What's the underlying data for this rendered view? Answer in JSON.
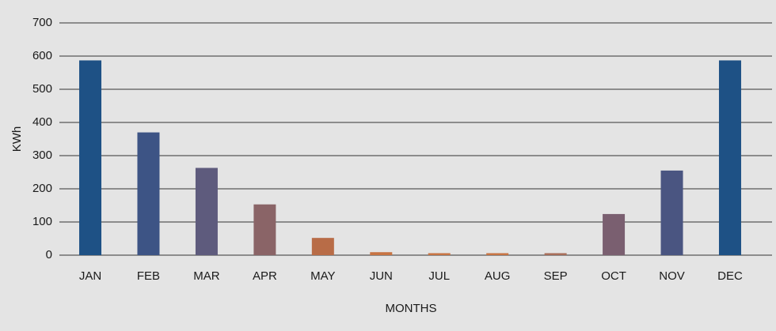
{
  "chart_data": {
    "type": "bar",
    "x_label": "MONTHS",
    "y_label": "KWh",
    "categories": [
      "JAN",
      "FEB",
      "MAR",
      "APR",
      "MAY",
      "JUN",
      "JUL",
      "AUG",
      "SEP",
      "OCT",
      "NOV",
      "DEC"
    ],
    "values": [
      587,
      370,
      263,
      153,
      52,
      9,
      6,
      6,
      6,
      124,
      255,
      587
    ],
    "colors": [
      "#1e5185",
      "#3d5485",
      "#5e5b7d",
      "#8a6467",
      "#b86c47",
      "#c77444",
      "#c77444",
      "#c77444",
      "#a86e5a",
      "#7a5f70",
      "#4a5581",
      "#1e5185"
    ],
    "ylim": [
      0,
      700
    ],
    "yticks": [
      0,
      100,
      200,
      300,
      400,
      500,
      600,
      700
    ],
    "grid": true
  }
}
